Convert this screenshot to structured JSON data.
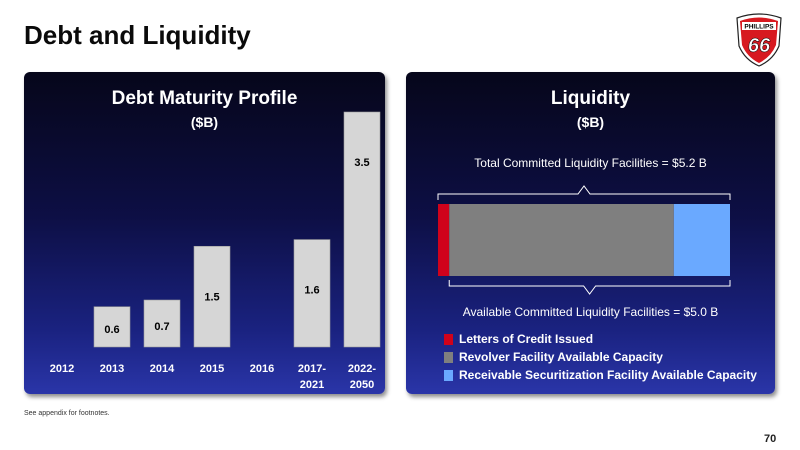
{
  "slide": {
    "title": "Debt and Liquidity",
    "footnote": "See appendix for footnotes.",
    "page_number": "70"
  },
  "logo": {
    "text_top": "PHILLIPS",
    "text_main": "66",
    "color_red": "#d71920",
    "color_outline": "#ffffff"
  },
  "colors": {
    "bar_fill": "#d6d6d6",
    "letters_of_credit": "#d0021b",
    "revolver": "#7f7f7f",
    "receivable": "#6aa9ff"
  },
  "chart_data": [
    {
      "type": "bar",
      "title": "Debt Maturity Profile",
      "subtitle": "($B)",
      "categories": [
        "2012",
        "2013",
        "2014",
        "2015",
        "2016",
        "2017-2021",
        "2022-2050"
      ],
      "category_lines": [
        [
          "2012"
        ],
        [
          "2013"
        ],
        [
          "2014"
        ],
        [
          "2015"
        ],
        [
          "2016"
        ],
        [
          "2017-",
          "2021"
        ],
        [
          "2022-",
          "2050"
        ]
      ],
      "values": [
        0,
        0.6,
        0.7,
        1.5,
        0,
        1.6,
        3.5
      ],
      "data_labels": [
        "",
        "0.6",
        "0.7",
        "1.5",
        "",
        "1.6",
        "3.5"
      ],
      "ylim": [
        0,
        3.5
      ]
    },
    {
      "type": "bar",
      "orientation": "horizontal-stacked",
      "title": "Liquidity",
      "subtitle": "($B)",
      "total_label": "Total Committed Liquidity Facilities = $5.2 B",
      "available_label": "Available Committed Liquidity Facilities = $5.0 B",
      "total": 5.2,
      "series": [
        {
          "name": "Letters of Credit Issued",
          "value": 0.2
        },
        {
          "name": "Revolver Facility Available Capacity",
          "value": 4.0
        },
        {
          "name": "Receivable Securitization Facility Available Capacity",
          "value": 1.0
        }
      ],
      "legend": "bottom-left"
    }
  ]
}
